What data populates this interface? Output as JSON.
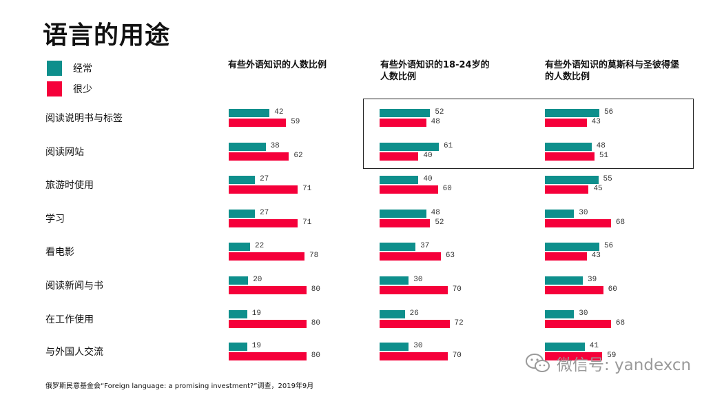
{
  "title": "语言的用途",
  "legend": [
    {
      "label": "经常",
      "color": "#0e8f8c"
    },
    {
      "label": "很少",
      "color": "#f5003a"
    }
  ],
  "columns": [
    {
      "title_parts": [
        "有些外语知识的人数比例"
      ]
    },
    {
      "title_parts": [
        "有些外语知识的",
        "18-24岁",
        "的",
        "人数比例"
      ]
    },
    {
      "title_parts": [
        "有些外语知识的",
        "莫斯科与圣彼得堡",
        "的人数比例"
      ]
    }
  ],
  "chart_data": {
    "type": "bar",
    "orientation": "horizontal",
    "title": "语言的用途",
    "categories": [
      "阅读说明书与标签",
      "阅读网站",
      "旅游时使用",
      "学习",
      "看电影",
      "阅读新闻与书",
      "在工作使用",
      "与外国人交流"
    ],
    "panels": [
      {
        "name": "有些外语知识的人数比例",
        "series": [
          {
            "name": "经常",
            "values": [
              42,
              38,
              27,
              27,
              22,
              20,
              19,
              19
            ]
          },
          {
            "name": "很少",
            "values": [
              59,
              62,
              71,
              71,
              78,
              80,
              80,
              80
            ]
          }
        ]
      },
      {
        "name": "有些外语知识的18-24岁的人数比例",
        "series": [
          {
            "name": "经常",
            "values": [
              52,
              61,
              40,
              48,
              37,
              30,
              26,
              30
            ]
          },
          {
            "name": "很少",
            "values": [
              48,
              40,
              60,
              52,
              63,
              70,
              72,
              70
            ]
          }
        ]
      },
      {
        "name": "有些外语知识的莫斯科与圣彼得堡的人数比例",
        "series": [
          {
            "name": "经常",
            "values": [
              56,
              48,
              55,
              30,
              56,
              39,
              30,
              41
            ]
          },
          {
            "name": "很少",
            "values": [
              43,
              51,
              45,
              68,
              43,
              60,
              68,
              59
            ]
          }
        ]
      }
    ]
  },
  "source": "俄罗斯民意基金会“Foreign language: a promising investment?”调查，2019年9月",
  "watermark": "微信号: yandexcn",
  "watermark_icon": "wechat-icon"
}
